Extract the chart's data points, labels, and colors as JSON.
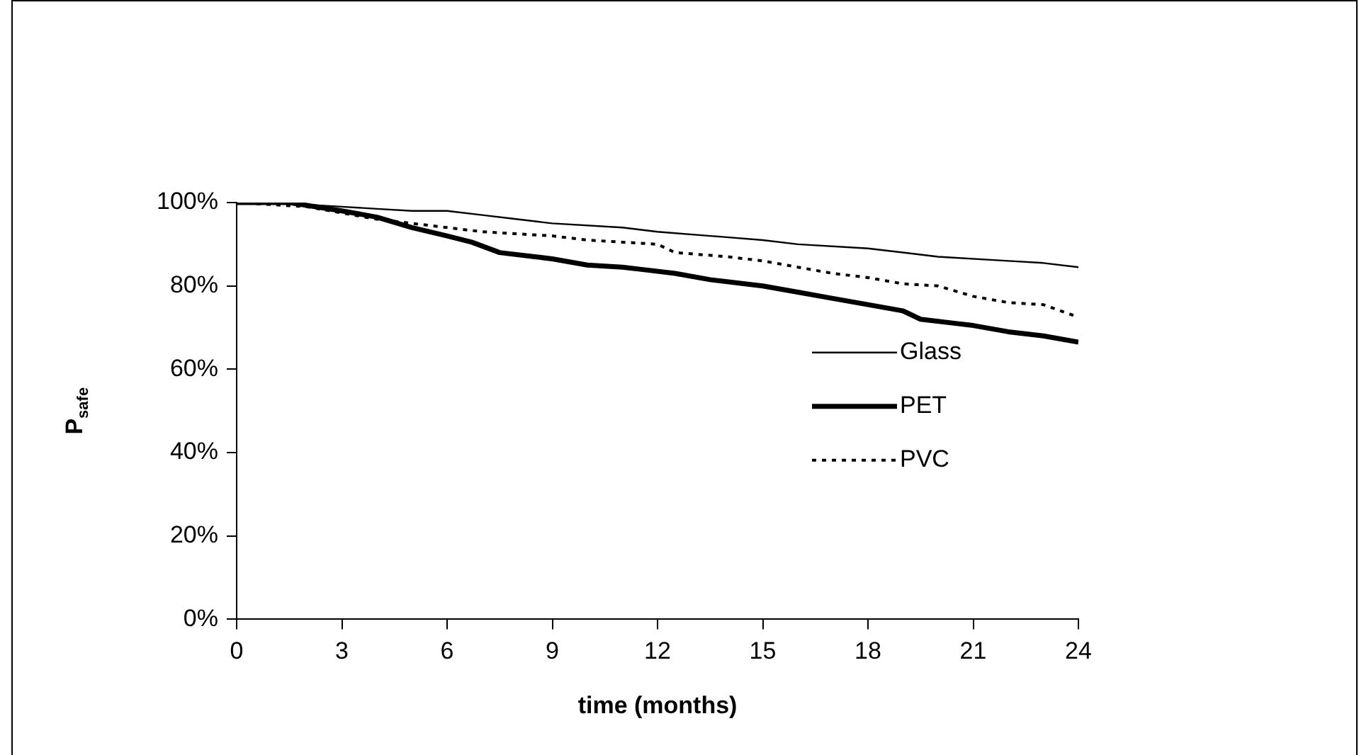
{
  "chart_data": {
    "type": "line",
    "xlabel": "time (months)",
    "ylabel": "P$_{safe}$",
    "xlim": [
      0,
      24
    ],
    "xticks": [
      0,
      3,
      6,
      9,
      12,
      15,
      18,
      21,
      24
    ],
    "ylim": [
      0,
      100
    ],
    "yticks": [
      {
        "value": 0,
        "label": "0%"
      },
      {
        "value": 20,
        "label": "20%"
      },
      {
        "value": 40,
        "label": "40%"
      },
      {
        "value": 60,
        "label": "60%"
      },
      {
        "value": 80,
        "label": "80%"
      },
      {
        "value": 100,
        "label": "100%"
      }
    ],
    "grid": false,
    "legend": "right",
    "marker": "none",
    "series": [
      {
        "name": "Glass",
        "color": "#000000",
        "line_style": "solid",
        "x": [
          0,
          1,
          3,
          4,
          5,
          6,
          7,
          8,
          9,
          11,
          12,
          13.5,
          15,
          16,
          18,
          19.5,
          20,
          22,
          23,
          24
        ],
        "values": [
          100,
          100,
          99,
          98.5,
          98,
          98,
          97,
          96,
          95,
          94,
          93,
          92,
          91,
          90,
          89,
          87.5,
          87,
          86,
          85.5,
          84.5
        ]
      },
      {
        "name": "PET",
        "color": "#000000",
        "line_style": "solid",
        "x": [
          0,
          1.5,
          3,
          4,
          5,
          6,
          6.7,
          7.5,
          8.5,
          9,
          10,
          11,
          11.5,
          12.5,
          13.5,
          15,
          16,
          17,
          18,
          19,
          19.5,
          20.5,
          21,
          22,
          23,
          24
        ],
        "values": [
          100,
          100,
          98,
          96.5,
          94,
          92,
          90.5,
          88,
          87,
          86.5,
          85,
          84.5,
          84,
          83,
          81.5,
          80,
          78.5,
          77,
          75.5,
          74,
          72,
          71,
          70.5,
          69,
          68,
          66.5
        ]
      },
      {
        "name": "PVC",
        "color": "#000000",
        "line_style": "dotted",
        "x": [
          0,
          2,
          3,
          4,
          5,
          6,
          7,
          8,
          9,
          10,
          11,
          12,
          12.5,
          14,
          15,
          16,
          17,
          18,
          19,
          20,
          21,
          22,
          23,
          24
        ],
        "values": [
          100,
          99,
          97.5,
          96,
          95,
          94,
          93,
          92.5,
          92,
          91,
          90.5,
          90,
          88,
          87,
          86,
          84.5,
          83,
          82,
          80.5,
          80,
          77.5,
          76,
          75.5,
          72.5
        ]
      }
    ]
  }
}
